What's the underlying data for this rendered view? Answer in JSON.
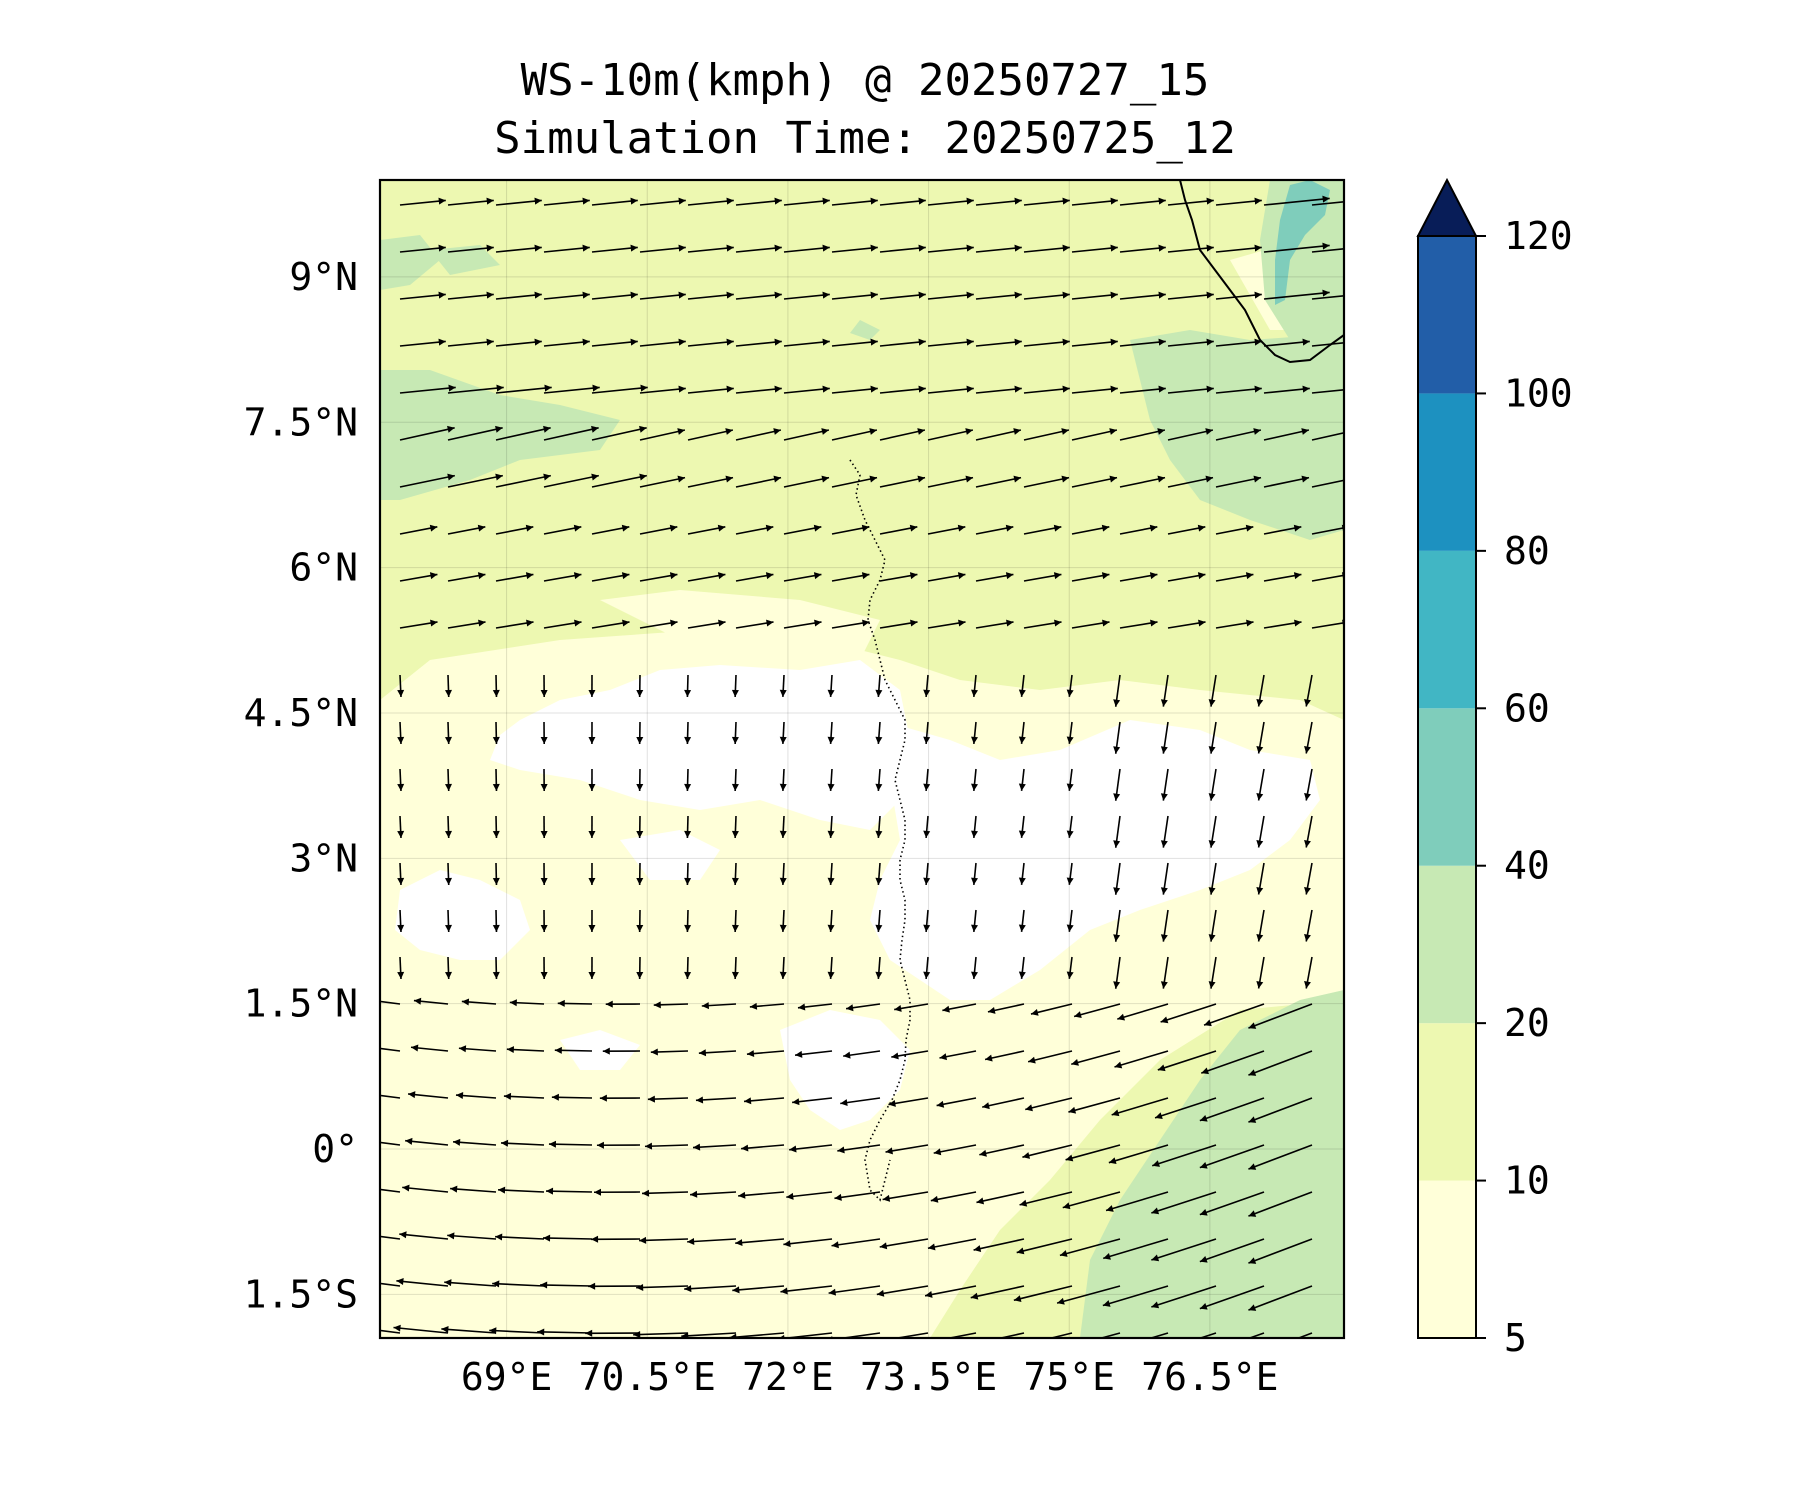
{
  "title_line1": "WS-10m(kmph) @ 20250727_15",
  "title_line2": "Simulation Time: 20250725_12",
  "map": {
    "lon_range": [
      67.65,
      77.93
    ],
    "lat_range": [
      -1.95,
      10.0
    ],
    "lon_ticks": [
      {
        "value": 69,
        "label": "69°E"
      },
      {
        "value": 70.5,
        "label": "70.5°E"
      },
      {
        "value": 72,
        "label": "72°E"
      },
      {
        "value": 73.5,
        "label": "73.5°E"
      },
      {
        "value": 75,
        "label": "75°E"
      },
      {
        "value": 76.5,
        "label": "76.5°E"
      }
    ],
    "lat_ticks": [
      {
        "value": 9,
        "label": "9°N"
      },
      {
        "value": 7.5,
        "label": "7.5°N"
      },
      {
        "value": 6,
        "label": "6°N"
      },
      {
        "value": 4.5,
        "label": "4.5°N"
      },
      {
        "value": 3,
        "label": "3°N"
      },
      {
        "value": 1.5,
        "label": "1.5°N"
      },
      {
        "value": 0,
        "label": "0°"
      },
      {
        "value": -1.5,
        "label": "1.5°S"
      }
    ],
    "gridlines": true
  },
  "colorbar": {
    "levels": [
      5,
      10,
      20,
      40,
      60,
      80,
      100,
      120
    ],
    "colors": [
      "#ffffd9",
      "#edf8b1",
      "#c7e9b4",
      "#7fcdbb",
      "#41b6c4",
      "#1d91c0",
      "#225ea8",
      "#253494"
    ],
    "extend_color": "#081d58",
    "extend": "max",
    "tick_labels": [
      "5",
      "10",
      "20",
      "40",
      "60",
      "80",
      "100",
      "120"
    ]
  },
  "fill_colors": {
    "calm": "#ffffff",
    "low": "#ffffd9",
    "mid": "#edf8b1",
    "high": "#c7e9b4",
    "strong": "#7fcdbb"
  }
}
